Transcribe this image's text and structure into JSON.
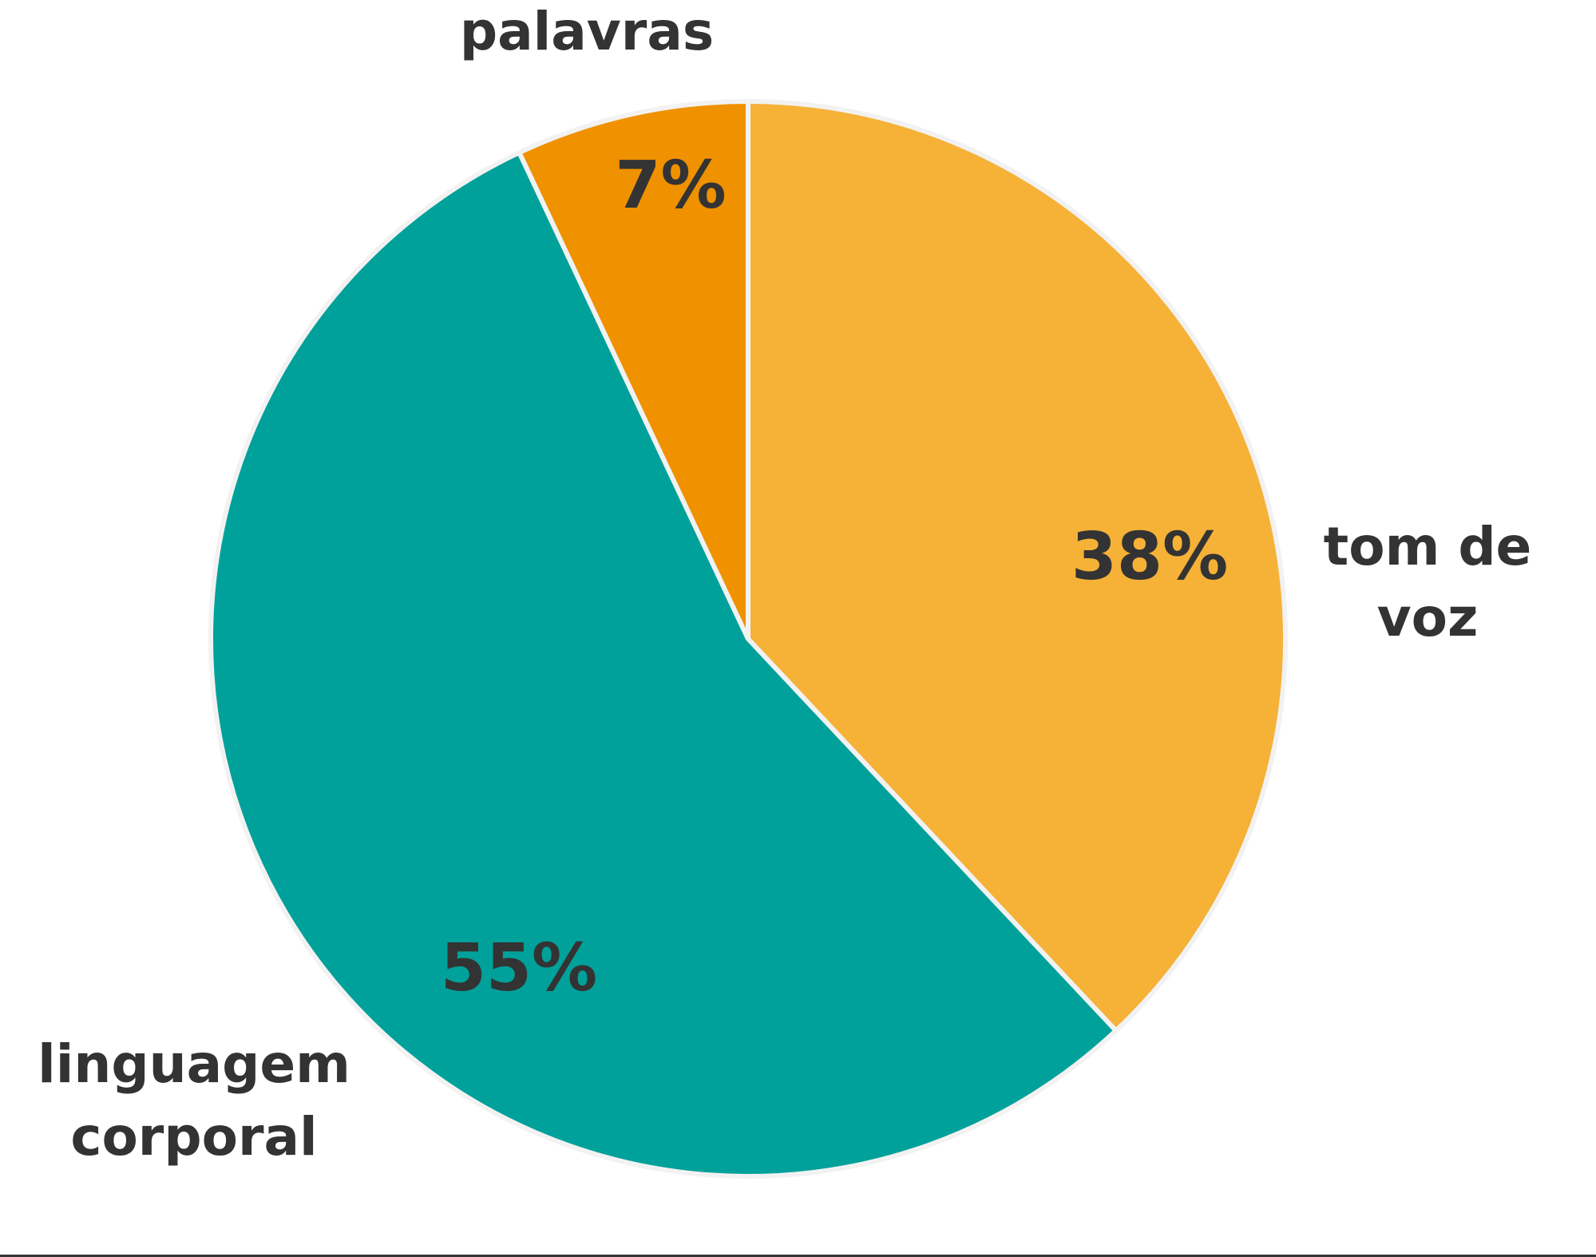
{
  "chart_data": {
    "type": "pie",
    "title": "",
    "slices": [
      {
        "label": "tom de voz",
        "value": 38,
        "value_label": "38%",
        "color": "#f6b137"
      },
      {
        "label": "linguagem corporal",
        "value": 55,
        "value_label": "55%",
        "color": "#00a19a"
      },
      {
        "label": "palavras",
        "value": 7,
        "value_label": "7%",
        "color": "#f09100"
      }
    ],
    "start_angle_deg": 0,
    "direction": "clockwise",
    "legend": "none",
    "border_color": "#f2f2f2"
  }
}
